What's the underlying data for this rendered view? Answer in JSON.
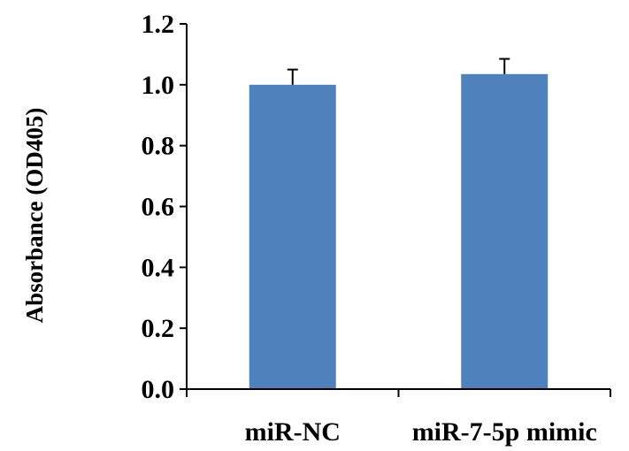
{
  "chart_data": {
    "type": "bar",
    "ylabel": "Absorbance (OD405)",
    "xlabel": "",
    "categories": [
      "miR-NC",
      "miR-7-5p mimic"
    ],
    "values": [
      1.0,
      1.035
    ],
    "errors": [
      0.05,
      0.05
    ],
    "ylim": [
      0,
      1.2
    ],
    "yticks": [
      "0.0",
      "0.2",
      "0.4",
      "0.6",
      "0.8",
      "1.0",
      "1.2"
    ],
    "bar_color": "#4F81BD",
    "grid": false,
    "legend": "none"
  }
}
